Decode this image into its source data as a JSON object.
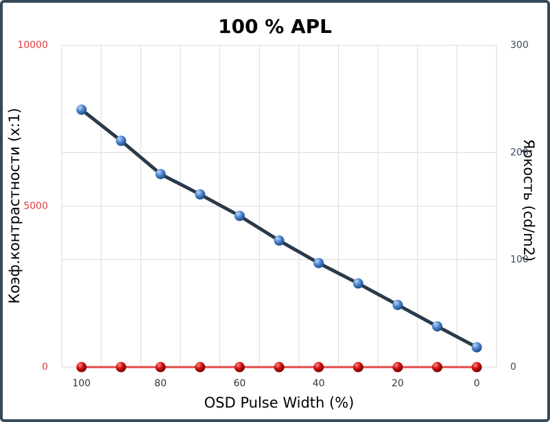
{
  "chart_data": {
    "type": "line",
    "title": "100 % APL",
    "x_label": "OSD Pulse Width (%)",
    "y_label": "Коэф.контрастности  (x:1)",
    "y2_label": "Яркость (cd/m2)",
    "categories": [
      100,
      null,
      80,
      null,
      60,
      null,
      40,
      null,
      20,
      null,
      0
    ],
    "series": [
      {
        "color": "#e04848",
        "axis": "y",
        "values": [
          0,
          0,
          0,
          0,
          0,
          0,
          0,
          0,
          0,
          0,
          0
        ]
      },
      {
        "color": "#2b3a4a",
        "axis": "y2",
        "values": [
          240,
          211,
          180,
          161,
          141,
          118,
          97,
          78,
          58,
          38,
          18.5
        ]
      }
    ],
    "ylim": [
      0,
      10000
    ],
    "yticks": [
      0,
      5000,
      10000
    ],
    "y2lim": [
      0,
      300
    ],
    "y2ticks": [
      0,
      100,
      200,
      300
    ],
    "y_tick_color": "#e03c3c",
    "y2_tick_color": "#3a4a5a",
    "grid": true
  }
}
